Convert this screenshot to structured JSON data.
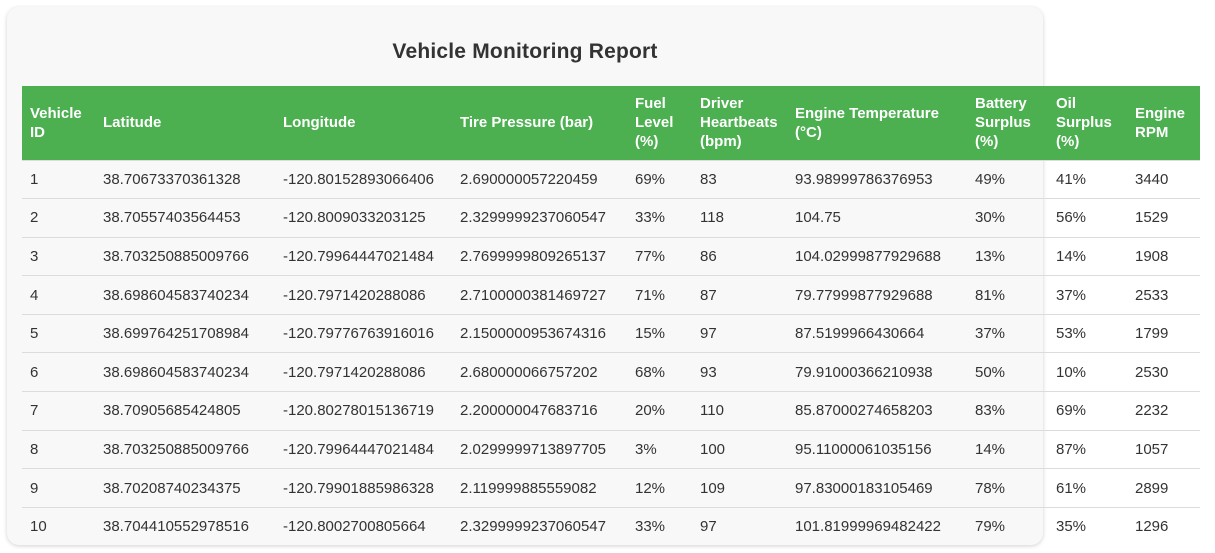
{
  "title": "Vehicle Monitoring Report",
  "colors": {
    "page_bg": "#ffffff",
    "card_bg": "#f8f8f8",
    "title_color": "#333333",
    "header_bg": "#4caf50",
    "header_text": "#ffffff",
    "row_text": "#333333",
    "divider": "#dcdcdc"
  },
  "table": {
    "columns": [
      {
        "key": "vehicle-id",
        "label": "Vehicle ID"
      },
      {
        "key": "latitude",
        "label": "Latitude"
      },
      {
        "key": "longitude",
        "label": "Longitude"
      },
      {
        "key": "tire-pressure",
        "label": "Tire Pressure (bar)"
      },
      {
        "key": "fuel-level",
        "label": "Fuel Level (%)"
      },
      {
        "key": "driver-heartbeats",
        "label": "Driver Heartbeats (bpm)"
      },
      {
        "key": "engine-temperature",
        "label": "Engine Temperature (°C)"
      },
      {
        "key": "battery-surplus",
        "label": "Battery Surplus (%)"
      },
      {
        "key": "oil-surplus",
        "label": "Oil Surplus (%)"
      },
      {
        "key": "engine-rpm",
        "label": "Engine RPM"
      }
    ],
    "rows": [
      [
        "1",
        "38.70673370361328",
        "-120.80152893066406",
        "2.690000057220459",
        "69%",
        "83",
        "93.98999786376953",
        "49%",
        "41%",
        "3440"
      ],
      [
        "2",
        "38.70557403564453",
        "-120.8009033203125",
        "2.3299999237060547",
        "33%",
        "118",
        "104.75",
        "30%",
        "56%",
        "1529"
      ],
      [
        "3",
        "38.703250885009766",
        "-120.79964447021484",
        "2.7699999809265137",
        "77%",
        "86",
        "104.02999877929688",
        "13%",
        "14%",
        "1908"
      ],
      [
        "4",
        "38.698604583740234",
        "-120.7971420288086",
        "2.7100000381469727",
        "71%",
        "87",
        "79.77999877929688",
        "81%",
        "37%",
        "2533"
      ],
      [
        "5",
        "38.699764251708984",
        "-120.79776763916016",
        "2.1500000953674316",
        "15%",
        "97",
        "87.5199966430664",
        "37%",
        "53%",
        "1799"
      ],
      [
        "6",
        "38.698604583740234",
        "-120.7971420288086",
        "2.680000066757202",
        "68%",
        "93",
        "79.91000366210938",
        "50%",
        "10%",
        "2530"
      ],
      [
        "7",
        "38.70905685424805",
        "-120.80278015136719",
        "2.200000047683716",
        "20%",
        "110",
        "85.87000274658203",
        "83%",
        "69%",
        "2232"
      ],
      [
        "8",
        "38.703250885009766",
        "-120.79964447021484",
        "2.0299999713897705",
        "3%",
        "100",
        "95.11000061035156",
        "14%",
        "87%",
        "1057"
      ],
      [
        "9",
        "38.70208740234375",
        "-120.79901885986328",
        "2.119999885559082",
        "12%",
        "109",
        "97.83000183105469",
        "78%",
        "61%",
        "2899"
      ],
      [
        "10",
        "38.704410552978516",
        "-120.8002700805664",
        "2.3299999237060547",
        "33%",
        "97",
        "101.81999969482422",
        "79%",
        "35%",
        "1296"
      ]
    ]
  }
}
